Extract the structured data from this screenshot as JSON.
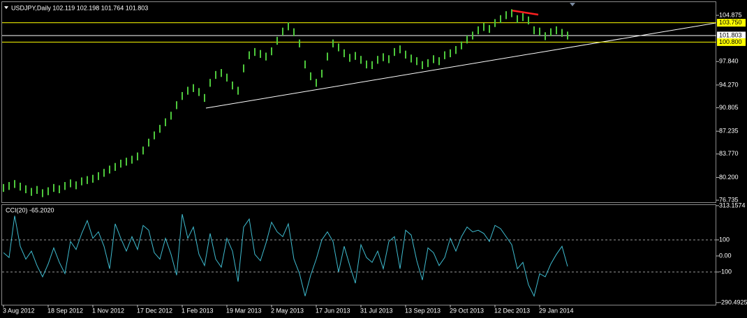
{
  "chart_data": [
    {
      "type": "range",
      "title": "USDJPY,Daily  102.119 102.198 101.764 101.803",
      "color": "#4ec83c",
      "categories": [
        "3 Aug 2012",
        null,
        null,
        null,
        null,
        null,
        null,
        null,
        "18 Sep 2012",
        null,
        null,
        null,
        null,
        null,
        null,
        null,
        "1 Nov 2012",
        null,
        null,
        null,
        null,
        null,
        null,
        null,
        "17 Dec 2012",
        null,
        null,
        null,
        null,
        null,
        null,
        null,
        "1 Feb 2013",
        null,
        null,
        null,
        null,
        null,
        null,
        null,
        "19 Mar 2013",
        null,
        null,
        null,
        null,
        null,
        null,
        null,
        "2 May 2013",
        null,
        null,
        null,
        null,
        null,
        null,
        null,
        "17 Jun 2013",
        null,
        null,
        null,
        null,
        null,
        null,
        null,
        "31 Jul 2013",
        null,
        null,
        null,
        null,
        null,
        null,
        null,
        "13 Sep 2013",
        null,
        null,
        null,
        null,
        null,
        null,
        null,
        "29 Oct 2013",
        null,
        null,
        null,
        null,
        null,
        null,
        null,
        "12 Dec 2013",
        null,
        null,
        null,
        null,
        null,
        null,
        null,
        "29 Jan 2014",
        null,
        null,
        null,
        null,
        null
      ],
      "high": [
        79.2,
        79.5,
        79.8,
        79.4,
        79.0,
        78.6,
        78.9,
        78.4,
        78.7,
        79.2,
        79.0,
        79.5,
        79.9,
        79.6,
        80.2,
        80.4,
        80.6,
        81.0,
        81.5,
        82.0,
        82.4,
        82.9,
        83.2,
        83.5,
        84.0,
        84.9,
        86.1,
        87.2,
        88.2,
        89.2,
        90.2,
        91.8,
        93.2,
        94.0,
        94.4,
        93.8,
        92.9,
        95.2,
        96.4,
        96.7,
        96.0,
        94.8,
        94.0,
        97.4,
        99.4,
        99.9,
        99.6,
        99.2,
        100.0,
        101.6,
        103.0,
        103.8,
        102.9,
        101.2,
        98.0,
        96.2,
        95.2,
        96.6,
        99.2,
        101.2,
        100.6,
        99.7,
        99.0,
        99.3,
        98.7,
        98.0,
        97.9,
        98.7,
        99.1,
        98.8,
        99.9,
        100.3,
        99.5,
        98.9,
        98.5,
        97.9,
        98.2,
        98.8,
        98.5,
        99.4,
        99.7,
        100.2,
        100.9,
        101.8,
        102.4,
        103.2,
        103.7,
        103.4,
        104.3,
        104.9,
        105.5,
        105.8,
        104.9,
        105.2,
        104.7,
        103.2,
        103.0,
        102.3,
        102.9,
        103.2,
        102.8,
        102.4
      ],
      "low": [
        78.0,
        78.3,
        78.6,
        78.2,
        77.8,
        77.4,
        77.7,
        77.2,
        77.5,
        78.0,
        77.8,
        78.3,
        78.7,
        78.4,
        79.0,
        79.2,
        79.4,
        79.8,
        80.3,
        80.8,
        81.2,
        81.7,
        82.0,
        82.3,
        82.8,
        83.7,
        84.9,
        86.0,
        87.0,
        88.0,
        89.0,
        90.6,
        92.0,
        92.8,
        93.2,
        92.6,
        91.7,
        94.0,
        95.2,
        95.5,
        94.8,
        93.6,
        92.8,
        96.2,
        98.2,
        98.7,
        98.4,
        98.0,
        98.8,
        100.4,
        101.8,
        102.6,
        101.7,
        100.0,
        96.8,
        95.0,
        94.0,
        95.4,
        98.0,
        100.0,
        99.4,
        98.5,
        97.8,
        98.1,
        97.5,
        96.8,
        96.7,
        97.5,
        97.9,
        97.6,
        98.7,
        99.1,
        98.3,
        97.7,
        97.3,
        96.7,
        97.0,
        97.6,
        97.3,
        98.2,
        98.5,
        99.0,
        99.7,
        100.6,
        101.2,
        102.0,
        102.5,
        102.2,
        103.1,
        103.7,
        104.3,
        104.6,
        103.7,
        104.0,
        103.5,
        102.0,
        101.8,
        101.1,
        101.7,
        102.0,
        101.6,
        101.2
      ],
      "ylim": [
        76.425,
        106.892
      ],
      "yticks": [
        104.875,
        {
          "value": 97.84,
          "label": "97.840"
        },
        {
          "value": 94.27,
          "label": "94.270"
        },
        90.805,
        87.235,
        {
          "value": 83.77,
          "label": "83.770"
        },
        {
          "value": 80.2,
          "label": "80.200"
        },
        76.735
      ],
      "levels": [
        {
          "value": 103.75,
          "label": "103.750",
          "color": "#ffff00"
        },
        {
          "value": 101.803,
          "color": "#ffffff"
        },
        {
          "value": 100.8,
          "label": "100.800",
          "color": "#ffff00"
        }
      ]
    },
    {
      "type": "line",
      "title": "CCI(20) -65.2020",
      "color": "#3fbcd0",
      "values": [
        20,
        -10,
        250,
        60,
        -20,
        30,
        -60,
        -130,
        -50,
        50,
        -40,
        -110,
        90,
        40,
        140,
        220,
        110,
        150,
        60,
        -80,
        200,
        110,
        30,
        120,
        40,
        190,
        160,
        20,
        -20,
        110,
        10,
        -120,
        260,
        110,
        180,
        10,
        -60,
        140,
        -20,
        -70,
        110,
        30,
        -160,
        180,
        230,
        10,
        -30,
        80,
        210,
        150,
        120,
        200,
        -20,
        -110,
        -250,
        -120,
        -20,
        100,
        150,
        90,
        -100,
        60,
        -60,
        -170,
        70,
        -10,
        -40,
        30,
        -80,
        90,
        120,
        -80,
        160,
        130,
        -30,
        -150,
        50,
        20,
        -60,
        -10,
        110,
        30,
        120,
        180,
        150,
        160,
        140,
        90,
        190,
        170,
        120,
        70,
        -80,
        -40,
        -180,
        -250,
        -110,
        -130,
        -50,
        10,
        60,
        -65.202
      ],
      "ylim": [
        -304,
        317
      ],
      "yticks": [
        313.1574,
        100,
        {
          "value": 0,
          "label": "0.00"
        },
        -100,
        -290.4925
      ],
      "levels": [
        {
          "value": 100,
          "color": "#9a9a9a"
        },
        {
          "value": -100,
          "color": "#9a9a9a"
        }
      ]
    }
  ]
}
